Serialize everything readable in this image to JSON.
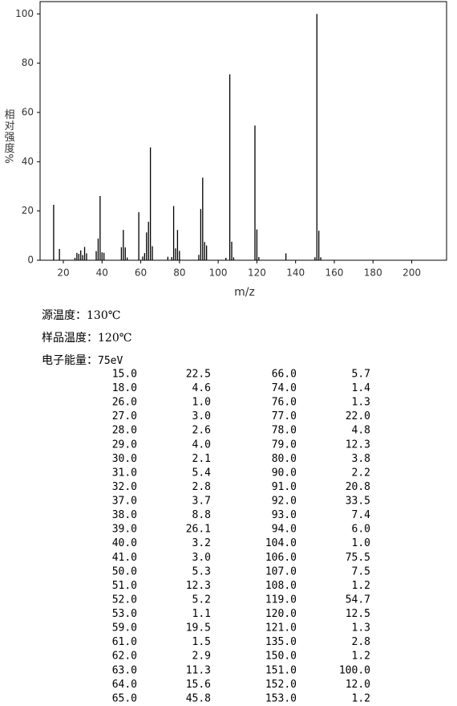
{
  "chart_data": {
    "type": "spectrum",
    "xlabel": "m/z",
    "ylabel": "相对强度%",
    "color": "#000000",
    "xlim": [
      8,
      218
    ],
    "ylim": [
      0,
      105
    ],
    "xticks": [
      20,
      40,
      60,
      80,
      100,
      120,
      140,
      160,
      180,
      200
    ],
    "yticks": [
      0,
      20,
      40,
      60,
      80,
      100
    ],
    "x": [
      15,
      18,
      26,
      27,
      28,
      29,
      30,
      31,
      32,
      37,
      38,
      39,
      40,
      41,
      50,
      51,
      52,
      53,
      59,
      61,
      62,
      63,
      64,
      65,
      66,
      74,
      76,
      77,
      78,
      79,
      80,
      90,
      91,
      92,
      93,
      94,
      104,
      106,
      107,
      108,
      119,
      120,
      121,
      135,
      150,
      151,
      152,
      153
    ],
    "x_labels": [
      "15.0",
      "18.0",
      "26.0",
      "27.0",
      "28.0",
      "29.0",
      "30.0",
      "31.0",
      "32.0",
      "37.0",
      "38.0",
      "39.0",
      "40.0",
      "41.0",
      "50.0",
      "51.0",
      "52.0",
      "53.0",
      "59.0",
      "61.0",
      "62.0",
      "63.0",
      "64.0",
      "65.0",
      "66.0",
      "74.0",
      "76.0",
      "77.0",
      "78.0",
      "79.0",
      "80.0",
      "90.0",
      "91.0",
      "92.0",
      "93.0",
      "94.0",
      "104.0",
      "106.0",
      "107.0",
      "108.0",
      "119.0",
      "120.0",
      "121.0",
      "135.0",
      "150.0",
      "151.0",
      "152.0",
      "153.0"
    ],
    "values": [
      22.5,
      4.6,
      1.0,
      3.0,
      2.6,
      4.0,
      2.1,
      5.4,
      2.8,
      3.7,
      8.8,
      26.1,
      3.2,
      3.0,
      5.3,
      12.3,
      5.2,
      1.1,
      19.5,
      1.5,
      2.9,
      11.3,
      15.6,
      45.8,
      5.7,
      1.4,
      1.3,
      22.0,
      4.8,
      12.3,
      3.8,
      2.2,
      20.8,
      33.5,
      7.4,
      6.0,
      1.0,
      75.5,
      7.5,
      1.2,
      54.7,
      12.5,
      1.3,
      2.8,
      1.2,
      100,
      12.0,
      1.2
    ],
    "value_labels": [
      "22.5",
      "4.6",
      "1.0",
      "3.0",
      "2.6",
      "4.0",
      "2.1",
      "5.4",
      "2.8",
      "3.7",
      "8.8",
      "26.1",
      "3.2",
      "3.0",
      "5.3",
      "12.3",
      "5.2",
      "1.1",
      "19.5",
      "1.5",
      "2.9",
      "11.3",
      "15.6",
      "45.8",
      "5.7",
      "1.4",
      "1.3",
      "22.0",
      "4.8",
      "12.3",
      "3.8",
      "2.2",
      "20.8",
      "33.5",
      "7.4",
      "6.0",
      "1.0",
      "75.5",
      "7.5",
      "1.2",
      "54.7",
      "12.5",
      "1.3",
      "2.8",
      "1.2",
      "100.0",
      "12.0",
      "1.2"
    ]
  },
  "info": [
    {
      "label": "源温度：",
      "value": "130℃"
    },
    {
      "label": "样品温度：",
      "value": "120℃"
    },
    {
      "label": "电子能量：",
      "value": "75eV"
    }
  ]
}
